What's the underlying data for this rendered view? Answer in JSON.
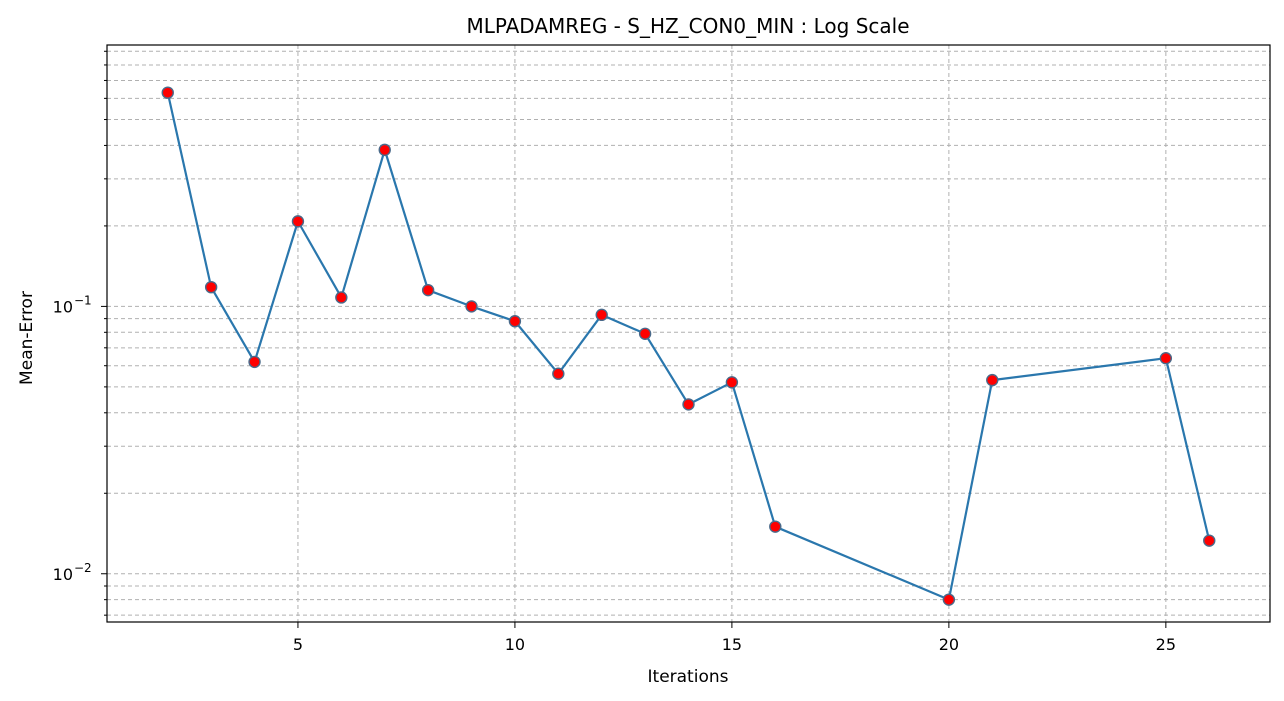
{
  "chart_data": {
    "type": "line",
    "title": "MLPADAMREG - S_HZ_CON0_MIN : Log Scale",
    "xlabel": "Iterations",
    "ylabel": "Mean-Error",
    "yscale": "log",
    "xlim": [
      0.6,
      27.4
    ],
    "ylim": [
      0.0066,
      0.95
    ],
    "xticks": [
      5,
      10,
      15,
      20,
      25
    ],
    "yticks_major": [
      {
        "value": 0.01,
        "base": "10",
        "exp": "−2"
      },
      {
        "value": 0.1,
        "base": "10",
        "exp": "−1"
      }
    ],
    "grid": true,
    "series": [
      {
        "line_color": "#2a77ad",
        "marker_color": "#ff0000",
        "marker_edge_color": "#4a6a8a",
        "x": [
          2,
          3,
          4,
          5,
          6,
          7,
          8,
          9,
          10,
          11,
          12,
          13,
          14,
          15,
          16,
          20,
          21,
          25,
          26
        ],
        "y": [
          0.63,
          0.118,
          0.062,
          0.208,
          0.108,
          0.385,
          0.115,
          0.1,
          0.088,
          0.056,
          0.093,
          0.079,
          0.043,
          0.052,
          0.015,
          0.008,
          0.053,
          0.064,
          0.0133
        ]
      }
    ]
  }
}
